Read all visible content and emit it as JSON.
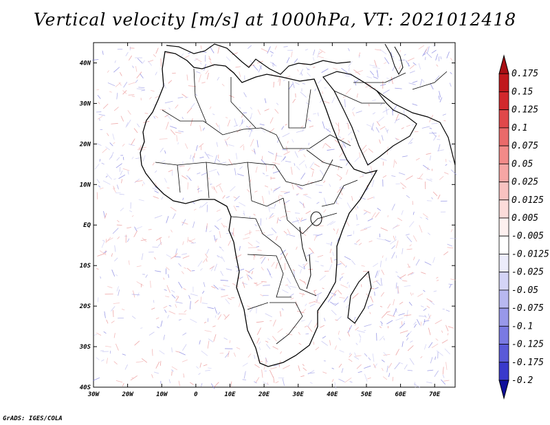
{
  "title": "Vertical velocity [m/s] at 1000hPa, VT: 2021012418",
  "credit": "GrADS: IGES/COLA",
  "map": {
    "lon_range": [
      -30,
      76
    ],
    "lat_range": [
      -40,
      45
    ],
    "lon_ticks": [
      {
        "value": -30,
        "label": "30W"
      },
      {
        "value": -20,
        "label": "20W"
      },
      {
        "value": -10,
        "label": "10W"
      },
      {
        "value": 0,
        "label": "0"
      },
      {
        "value": 10,
        "label": "10E"
      },
      {
        "value": 20,
        "label": "20E"
      },
      {
        "value": 30,
        "label": "30E"
      },
      {
        "value": 40,
        "label": "40E"
      },
      {
        "value": 50,
        "label": "50E"
      },
      {
        "value": 60,
        "label": "60E"
      },
      {
        "value": 70,
        "label": "70E"
      }
    ],
    "lat_ticks": [
      {
        "value": 40,
        "label": "40N"
      },
      {
        "value": 30,
        "label": "30N"
      },
      {
        "value": 20,
        "label": "20N"
      },
      {
        "value": 10,
        "label": "10N"
      },
      {
        "value": 0,
        "label": "EQ"
      },
      {
        "value": -10,
        "label": "10S"
      },
      {
        "value": -20,
        "label": "20S"
      },
      {
        "value": -30,
        "label": "30S"
      },
      {
        "value": -40,
        "label": "40S"
      }
    ]
  },
  "colorbar": {
    "levels": [
      {
        "label": "0.175",
        "color": "#c0181c"
      },
      {
        "label": "0.15",
        "color": "#d2282c"
      },
      {
        "label": "0.125",
        "color": "#e0484a"
      },
      {
        "label": "0.1",
        "color": "#ea6a6a"
      },
      {
        "label": "0.075",
        "color": "#f28a88"
      },
      {
        "label": "0.05",
        "color": "#f6a6a4"
      },
      {
        "label": "0.025",
        "color": "#f9c2c0"
      },
      {
        "label": "0.0125",
        "color": "#fcdcda"
      },
      {
        "label": "0.005",
        "color": "#fdf0ef"
      },
      {
        "label": "-0.005",
        "color": "#ffffff"
      },
      {
        "label": "-0.0125",
        "color": "#ececfb"
      },
      {
        "label": "-0.025",
        "color": "#d4d4f6"
      },
      {
        "label": "-0.05",
        "color": "#b8b8f0"
      },
      {
        "label": "-0.075",
        "color": "#9898ea"
      },
      {
        "label": "-0.1",
        "color": "#7a7ae2"
      },
      {
        "label": "-0.125",
        "color": "#5a5ad8"
      },
      {
        "label": "-0.175",
        "color": "#3a3acc"
      },
      {
        "label": "-0.2",
        "color": "#2020b8"
      }
    ],
    "top_arrow_color": "#a80f14",
    "bottom_arrow_color": "#10109a"
  }
}
